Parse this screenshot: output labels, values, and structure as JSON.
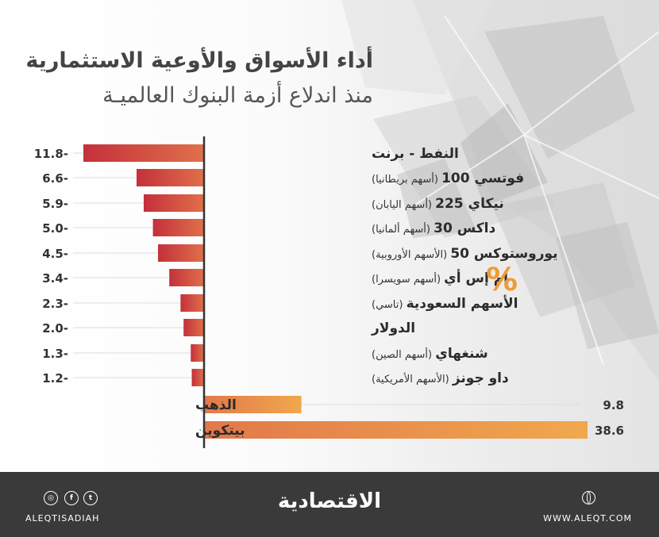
{
  "chart_data": {
    "type": "bar",
    "title": "أداء الأسواق والأوعية الاستثمارية",
    "subtitle": "منذ اندلاع أزمة البنوك العالميـة",
    "unit": "%",
    "categories": [
      {
        "name": "النفط - برنت",
        "note": ""
      },
      {
        "name": "فوتسي 100",
        "note": "(أسهم بريطانيا)"
      },
      {
        "name": "نيكاي 225",
        "note": "(أسهم اليابان)"
      },
      {
        "name": "داكس 30",
        "note": "(أسهم ألمانيا)"
      },
      {
        "name": "يوروستوكس 50",
        "note": "(الأسهم الأوروبية)"
      },
      {
        "name": "إم إس أي",
        "note": "(أسهم سويسرا)"
      },
      {
        "name": "الأسهم السعودية",
        "note": "(تاسي)"
      },
      {
        "name": "الدولار",
        "note": ""
      },
      {
        "name": "شنغهاي",
        "note": "(أسهم الصين)"
      },
      {
        "name": "داو جونز",
        "note": "(الأسهم الأمريكية)"
      },
      {
        "name": "الذهب",
        "note": ""
      },
      {
        "name": "بيتكوين",
        "note": ""
      }
    ],
    "values": [
      -11.8,
      -6.6,
      -5.9,
      -5.0,
      -4.5,
      -3.4,
      -2.3,
      -2.0,
      -1.3,
      -1.2,
      9.8,
      38.6
    ],
    "value_labels": [
      "11.8-",
      "6.6-",
      "5.9-",
      "5.0-",
      "4.5-",
      "3.4-",
      "2.3-",
      "2.0-",
      "1.3-",
      "1.2-",
      "9.8",
      "38.6"
    ],
    "colors": {
      "negative": "#c4303b",
      "positive": "#f0a84d",
      "accent": "#ef9b35"
    }
  },
  "footer": {
    "handle": "ALEQTISADIAH",
    "brand": "الاقتصادية",
    "website": "WWW.ALEQT.COM"
  }
}
